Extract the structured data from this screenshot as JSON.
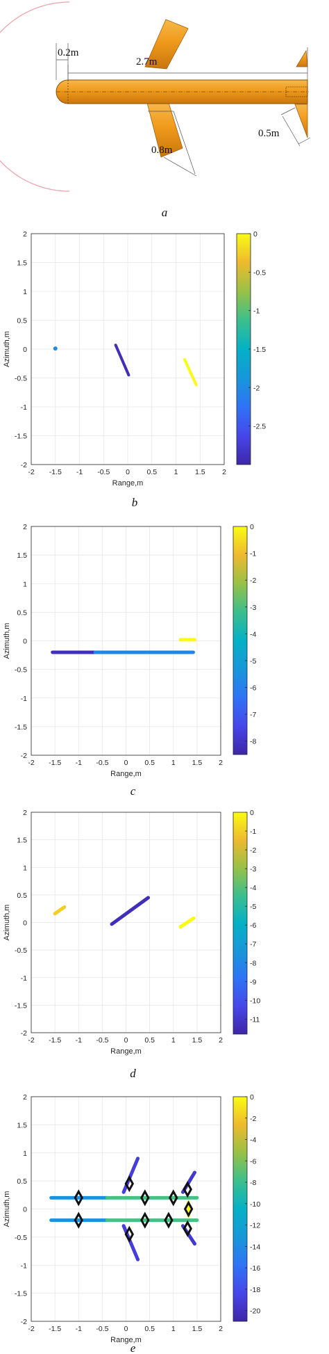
{
  "missile_diagram": {
    "dimensions": {
      "nose_radius": "0.2m",
      "body_length": "2.7m",
      "wing_length": "0.8m",
      "fin_length": "0.5m"
    },
    "colors": {
      "body": "#f09a1b",
      "wire": "#f0a0a8"
    }
  },
  "captions": [
    "a",
    "b",
    "c",
    "d",
    "e"
  ],
  "chart_data": [
    {
      "type": "line",
      "caption": "b",
      "xlabel": "Range,m",
      "ylabel": "Azimuth,m",
      "xlim": [
        -2,
        2
      ],
      "ylim": [
        -2,
        2
      ],
      "grid": true,
      "xticks": [
        "-2",
        "-1.5",
        "-1",
        "-0.5",
        "0",
        "0.5",
        "1",
        "1.5",
        "2"
      ],
      "yticks": [
        "2",
        "1.5",
        "1",
        "0.5",
        "0",
        "-0.5",
        "-1",
        "-1.5",
        "-2"
      ],
      "colorbar": {
        "range": [
          -3,
          0
        ],
        "ticks": [
          "0",
          "-0.5",
          "-1",
          "-1.5",
          "-2",
          "-2.5"
        ]
      },
      "segments": [
        {
          "x": [
            -1.5,
            -1.5
          ],
          "y": [
            0.01,
            0.01
          ],
          "value": -2.0
        },
        {
          "x": [
            -0.25,
            0.02
          ],
          "y": [
            0.07,
            -0.45
          ],
          "value": -2.9
        },
        {
          "x": [
            1.18,
            1.42
          ],
          "y": [
            -0.18,
            -0.62
          ],
          "value": 0.0
        }
      ]
    },
    {
      "type": "line",
      "caption": "c",
      "xlabel": "Range,m",
      "ylabel": "Azimuth,m",
      "xlim": [
        -2,
        2
      ],
      "ylim": [
        -2,
        2
      ],
      "grid": true,
      "xticks": [
        "-2",
        "-1.5",
        "-1",
        "-0.5",
        "0",
        "0.5",
        "1",
        "1.5",
        "2"
      ],
      "yticks": [
        "2",
        "1.5",
        "1",
        "0.5",
        "0",
        "-0.5",
        "-1",
        "-1.5",
        "-2"
      ],
      "colorbar": {
        "range": [
          -8.5,
          0
        ],
        "ticks": [
          "0",
          "-1",
          "-2",
          "-3",
          "-4",
          "-5",
          "-6",
          "-7",
          "-8"
        ]
      },
      "segments": [
        {
          "x": [
            -1.55,
            -0.65
          ],
          "y": [
            -0.2,
            -0.2
          ],
          "value": -8.2
        },
        {
          "x": [
            -0.65,
            1.42
          ],
          "y": [
            -0.2,
            -0.2
          ],
          "value": -5.8
        },
        {
          "x": [
            1.15,
            1.45
          ],
          "y": [
            0.02,
            0.02
          ],
          "value": 0.0
        }
      ]
    },
    {
      "type": "line",
      "caption": "d",
      "xlabel": "Range,m",
      "ylabel": "Azimuth,m",
      "xlim": [
        -2,
        2
      ],
      "ylim": [
        -2,
        2
      ],
      "grid": true,
      "xticks": [
        "-2",
        "-1.5",
        "-1",
        "-0.5",
        "0",
        "0.5",
        "1",
        "1.5",
        "2"
      ],
      "yticks": [
        "2",
        "1.5",
        "1",
        "0.5",
        "0",
        "-0.5",
        "-1",
        "-1.5",
        "-2"
      ],
      "colorbar": {
        "range": [
          -11.8,
          0
        ],
        "ticks": [
          "0",
          "-1",
          "-2",
          "-3",
          "-4",
          "-5",
          "-6",
          "-7",
          "-8",
          "-9",
          "-10",
          "-11"
        ]
      },
      "segments": [
        {
          "x": [
            -1.5,
            -1.3
          ],
          "y": [
            0.16,
            0.28
          ],
          "value": -1.0
        },
        {
          "x": [
            -0.3,
            0.47
          ],
          "y": [
            -0.03,
            0.45
          ],
          "value": -11.4
        },
        {
          "x": [
            1.15,
            1.43
          ],
          "y": [
            -0.08,
            0.08
          ],
          "value": 0.0
        }
      ]
    },
    {
      "type": "line",
      "caption": "e",
      "xlabel": "Range,m",
      "ylabel": "Azimuth,m",
      "xlim": [
        -2,
        2
      ],
      "ylim": [
        -2,
        2
      ],
      "grid": true,
      "xticks": [
        "-2",
        "-1.5",
        "-1",
        "-0.5",
        "0",
        "0.5",
        "1",
        "1.5",
        "2"
      ],
      "yticks": [
        "2",
        "1.5",
        "1",
        "0.5",
        "0",
        "-0.5",
        "-1",
        "-1.5",
        "-2"
      ],
      "colorbar": {
        "range": [
          -21,
          0
        ],
        "ticks": [
          "0",
          "-2",
          "-4",
          "-6",
          "-8",
          "-10",
          "-12",
          "-14",
          "-16",
          "-18",
          "-20"
        ]
      },
      "segments": [
        {
          "x": [
            -1.58,
            -0.4
          ],
          "y": [
            0.2,
            0.2
          ],
          "value": -13.5
        },
        {
          "x": [
            -0.4,
            1.5
          ],
          "y": [
            0.2,
            0.2
          ],
          "value": -7.5
        },
        {
          "x": [
            -1.58,
            -0.4
          ],
          "y": [
            -0.2,
            -0.2
          ],
          "value": -13.5
        },
        {
          "x": [
            -0.4,
            1.5
          ],
          "y": [
            -0.2,
            -0.2
          ],
          "value": -7.5
        },
        {
          "x": [
            -0.05,
            0.25
          ],
          "y": [
            0.3,
            0.9
          ],
          "value": -19.0
        },
        {
          "x": [
            -0.05,
            0.25
          ],
          "y": [
            -0.3,
            -0.9
          ],
          "value": -19.0
        },
        {
          "x": [
            1.2,
            1.45
          ],
          "y": [
            0.3,
            0.65
          ],
          "value": -19.5
        },
        {
          "x": [
            1.2,
            1.45
          ],
          "y": [
            -0.3,
            -0.62
          ],
          "value": -19.5
        },
        {
          "x": [
            1.32,
            1.32
          ],
          "y": [
            -0.12,
            0.12
          ],
          "value": 0.0
        }
      ],
      "markers": [
        {
          "x": -1.0,
          "y": 0.2
        },
        {
          "x": -1.0,
          "y": -0.2
        },
        {
          "x": 0.07,
          "y": 0.45
        },
        {
          "x": 0.07,
          "y": -0.45
        },
        {
          "x": 0.4,
          "y": 0.2
        },
        {
          "x": 0.4,
          "y": -0.2
        },
        {
          "x": 1.0,
          "y": 0.2
        },
        {
          "x": 0.9,
          "y": -0.2
        },
        {
          "x": 1.3,
          "y": 0.35
        },
        {
          "x": 1.3,
          "y": -0.35
        },
        {
          "x": 1.32,
          "y": 0.0
        }
      ]
    }
  ]
}
